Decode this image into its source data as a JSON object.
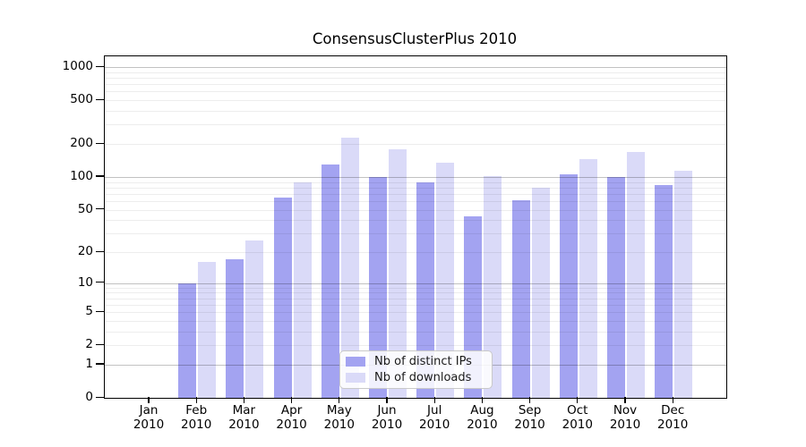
{
  "chart_data": {
    "type": "bar",
    "title": "ConsensusClusterPlus 2010",
    "year_label": "2010",
    "categories": [
      "Jan",
      "Feb",
      "Mar",
      "Apr",
      "May",
      "Jun",
      "Jul",
      "Aug",
      "Sep",
      "Oct",
      "Nov",
      "Dec"
    ],
    "series": [
      {
        "name": "Nb of distinct IPs",
        "color": "#a3a3f1",
        "values": [
          0,
          10,
          17,
          65,
          130,
          100,
          90,
          43,
          61,
          106,
          100,
          84
        ]
      },
      {
        "name": "Nb of downloads",
        "color": "#dadaf8",
        "values": [
          0,
          16,
          26,
          90,
          230,
          180,
          134,
          102,
          79,
          146,
          168,
          113
        ]
      }
    ],
    "xlabel": "",
    "ylabel": "",
    "yscale": "log10(value+1)",
    "yticks": [
      0,
      1,
      2,
      5,
      10,
      20,
      50,
      100,
      200,
      500,
      1000
    ],
    "ylim": [
      0,
      1240
    ],
    "grid": {
      "on": true,
      "major_lines": [
        1,
        10,
        100,
        1000
      ],
      "minor_multiples": [
        2,
        3,
        4,
        5,
        6,
        7,
        8,
        9
      ]
    },
    "legend": {
      "position": "lower center",
      "entries": [
        "Nb of distinct IPs",
        "Nb of downloads"
      ]
    }
  },
  "colors": {
    "bar_distinct_ips": "#a3a3f1",
    "bar_downloads": "#dadaf8",
    "axis": "#000000",
    "grid_major": "rgba(0,0,0,0.24)",
    "grid_minor": "rgba(0,0,0,0.07)",
    "legend_background": "rgba(255,255,255,0.85)",
    "legend_border": "#c9c9c9",
    "background": "#ffffff"
  }
}
